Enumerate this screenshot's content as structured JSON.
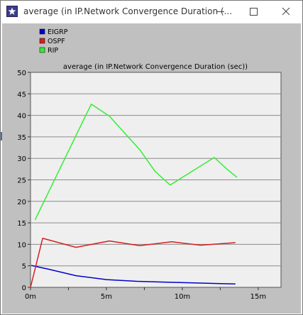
{
  "window": {
    "title": "average (in IP.Network Convergence Duration (...",
    "icon": "star-icon",
    "controls": [
      "minimize-icon",
      "maximize-icon",
      "close-icon"
    ]
  },
  "chart_data": {
    "type": "line",
    "title": "average (in IP.Network Convergence Duration (sec))",
    "xlabel": "",
    "ylabel": "",
    "x_ticks": [
      "0m",
      "5m",
      "10m",
      "15m"
    ],
    "y_ticks": [
      "0",
      "5",
      "10",
      "15",
      "20",
      "25",
      "30",
      "35",
      "40",
      "45",
      "50"
    ],
    "xlim": [
      0,
      16.5
    ],
    "ylim": [
      0,
      50
    ],
    "grid": "horizontal",
    "legend_position": "top-left",
    "series": [
      {
        "name": "EIGRP",
        "color": "#0000cc",
        "points": [
          [
            0.05,
            5.1
          ],
          [
            1.2,
            4.2
          ],
          [
            3,
            2.7
          ],
          [
            5,
            1.8
          ],
          [
            7,
            1.4
          ],
          [
            9,
            1.2
          ],
          [
            11,
            1.0
          ],
          [
            12.5,
            0.85
          ],
          [
            13.5,
            0.8
          ]
        ]
      },
      {
        "name": "OSPF",
        "color": "#d42020",
        "points": [
          [
            0,
            0
          ],
          [
            0.8,
            11.4
          ],
          [
            3,
            9.3
          ],
          [
            5.2,
            10.8
          ],
          [
            7.2,
            9.7
          ],
          [
            9.3,
            10.6
          ],
          [
            11.2,
            9.8
          ],
          [
            13.5,
            10.4
          ]
        ]
      },
      {
        "name": "RIP",
        "color": "#33ee33",
        "points": [
          [
            0.3,
            15.7
          ],
          [
            4,
            42.6
          ],
          [
            5.2,
            39.8
          ],
          [
            7.2,
            32.0
          ],
          [
            8.2,
            27.0
          ],
          [
            9.2,
            23.8
          ],
          [
            12.1,
            30.2
          ],
          [
            12.9,
            27.6
          ],
          [
            13.6,
            25.6
          ]
        ]
      }
    ]
  }
}
